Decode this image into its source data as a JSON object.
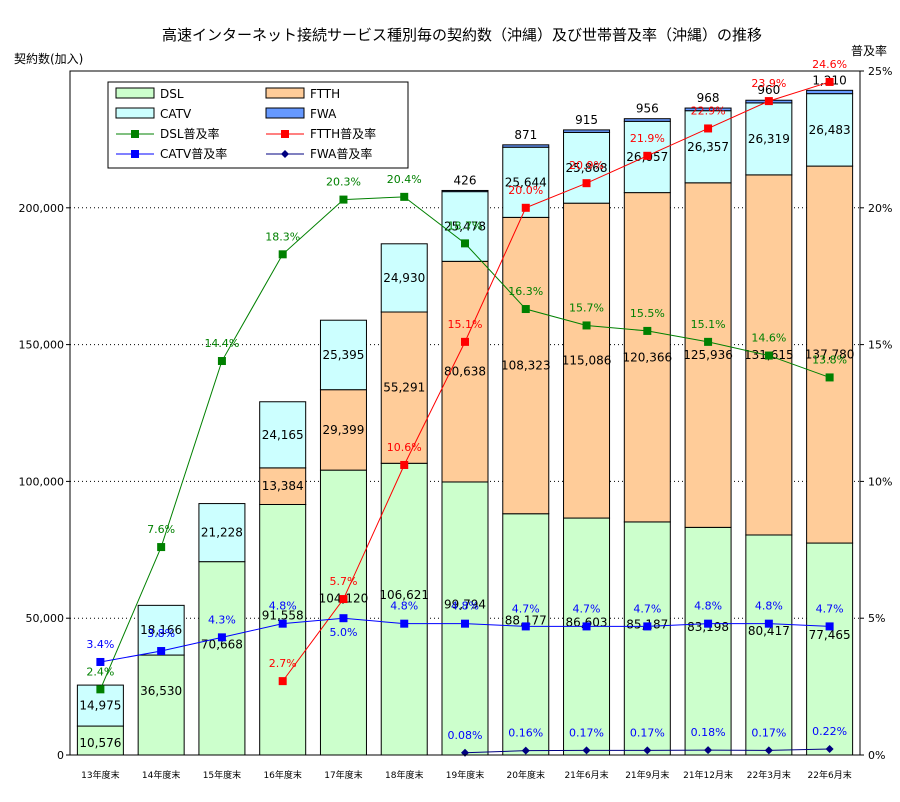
{
  "chart_data": {
    "type": "bar",
    "title": "高速インターネット接続サービス種別毎の契約数（沖縄）及び世帯普及率（沖縄）の推移",
    "ylabel": "契約数(加入)",
    "y2label": "普及率",
    "ylim": [
      0,
      250000
    ],
    "y2lim": [
      0,
      25
    ],
    "yticks": [
      "0",
      "50,000",
      "100,000",
      "150,000",
      "200,000"
    ],
    "y2ticks": [
      "0%",
      "5%",
      "10%",
      "15%",
      "20%",
      "25%"
    ],
    "grid": "horizontal-dotted",
    "legend_position": "top-left",
    "categories": [
      "13年度末",
      "14年度末",
      "15年度末",
      "16年度末",
      "17年度末",
      "18年度末",
      "19年度末",
      "20年度末",
      "21年6月末",
      "21年9月末",
      "21年12月末",
      "22年3月末",
      "22年6月末"
    ],
    "bar_series": [
      {
        "name": "DSL",
        "color": "#ccffcc",
        "values": [
          10576,
          36530,
          70668,
          91558,
          104120,
          106621,
          99794,
          88177,
          86603,
          85187,
          83198,
          80417,
          77465
        ],
        "labels": [
          "10,576",
          "36,530",
          "70,668",
          "91,558",
          "104,120",
          "106,621",
          "99,794",
          "88,177",
          "86,603",
          "85,187",
          "83,198",
          "80,417",
          "77,465"
        ]
      },
      {
        "name": "FTTH",
        "color": "#ffcc99",
        "values": [
          0,
          0,
          0,
          13384,
          29399,
          55291,
          80638,
          108323,
          115086,
          120366,
          125936,
          131615,
          137780
        ],
        "labels": [
          "",
          "",
          "",
          "13,384",
          "29,399",
          "55,291",
          "80,638",
          "108,323",
          "115,086",
          "120,366",
          "125,936",
          "131,615",
          "137,780"
        ]
      },
      {
        "name": "CATV",
        "color": "#ccffff",
        "values": [
          14975,
          18166,
          21228,
          24165,
          25395,
          24930,
          25478,
          25644,
          25868,
          26057,
          26357,
          26319,
          26483
        ],
        "labels": [
          "14,975",
          "18,166",
          "21,228",
          "24,165",
          "25,395",
          "24,930",
          "25,478",
          "25,644",
          "25,868",
          "26,057",
          "26,357",
          "26,319",
          "26,483"
        ]
      },
      {
        "name": "FWA",
        "color": "#6699ff",
        "values": [
          0,
          0,
          0,
          0,
          0,
          0,
          426,
          871,
          915,
          956,
          968,
          960,
          1210
        ],
        "labels": [
          "",
          "",
          "",
          "",
          "",
          "",
          "426",
          "871",
          "915",
          "956",
          "968",
          "960",
          "1,210"
        ]
      }
    ],
    "line_series": [
      {
        "name": "DSL普及率",
        "color": "#008000",
        "label_color": "#008000",
        "marker": "square",
        "values": [
          2.4,
          7.6,
          14.4,
          18.3,
          20.3,
          20.4,
          18.7,
          16.3,
          15.7,
          15.5,
          15.1,
          14.6,
          13.8
        ],
        "labels": [
          "2.4%",
          "7.6%",
          "14.4%",
          "18.3%",
          "20.3%",
          "20.4%",
          "18.7%",
          "16.3%",
          "15.7%",
          "15.5%",
          "15.1%",
          "14.6%",
          "13.8%"
        ]
      },
      {
        "name": "FTTH普及率",
        "color": "#ff0000",
        "label_color": "#ff0000",
        "marker": "square",
        "values": [
          null,
          null,
          null,
          2.7,
          5.7,
          10.6,
          15.1,
          20.0,
          20.9,
          21.9,
          22.9,
          23.9,
          24.6
        ],
        "labels": [
          "",
          "",
          "",
          "2.7%",
          "5.7%",
          "10.6%",
          "15.1%",
          "20.0%",
          "20.9%",
          "21.9%",
          "22.9%",
          "23.9%",
          "24.6%"
        ]
      },
      {
        "name": "CATV普及率",
        "color": "#0000ff",
        "label_color": "#0000ff",
        "marker": "square",
        "values": [
          3.4,
          3.8,
          4.3,
          4.8,
          5.0,
          4.8,
          4.8,
          4.7,
          4.7,
          4.7,
          4.8,
          4.8,
          4.7
        ],
        "labels": [
          "3.4%",
          "3.8%",
          "4.3%",
          "4.8%",
          "5.0%",
          "4.8%",
          "4.8%",
          "4.7%",
          "4.7%",
          "4.7%",
          "4.8%",
          "4.8%",
          "4.7%"
        ]
      },
      {
        "name": "FWA普及率",
        "color": "#000080",
        "label_color": "#0000ff",
        "marker": "diamond",
        "values": [
          null,
          null,
          null,
          null,
          null,
          null,
          0.08,
          0.16,
          0.17,
          0.17,
          0.18,
          0.17,
          0.22
        ],
        "labels": [
          "",
          "",
          "",
          "",
          "",
          "",
          "0.08%",
          "0.16%",
          "0.17%",
          "0.17%",
          "0.18%",
          "0.17%",
          "0.22%"
        ]
      }
    ]
  }
}
